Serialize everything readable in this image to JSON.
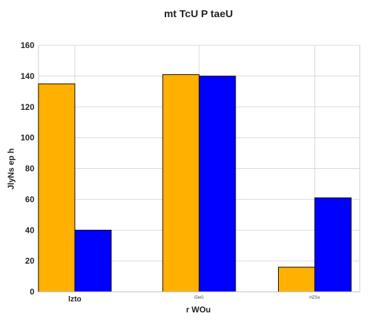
{
  "chart_data": {
    "type": "bar",
    "title": "mt TcU P taeU",
    "xlabel": "r  WOu",
    "ylabel": "JlyNs  ep h",
    "categories": [
      "lzto",
      "iDeG",
      "HZSo"
    ],
    "series": [
      {
        "values": [
          135,
          141,
          16
        ],
        "color": "#FFB000"
      },
      {
        "values": [
          40,
          140,
          61
        ],
        "color": "#0000FF"
      }
    ],
    "ylim": [
      0,
      160
    ],
    "yticks": [
      0,
      20,
      40,
      60,
      80,
      100,
      120,
      140,
      160
    ],
    "grid": true,
    "legend": "none"
  }
}
